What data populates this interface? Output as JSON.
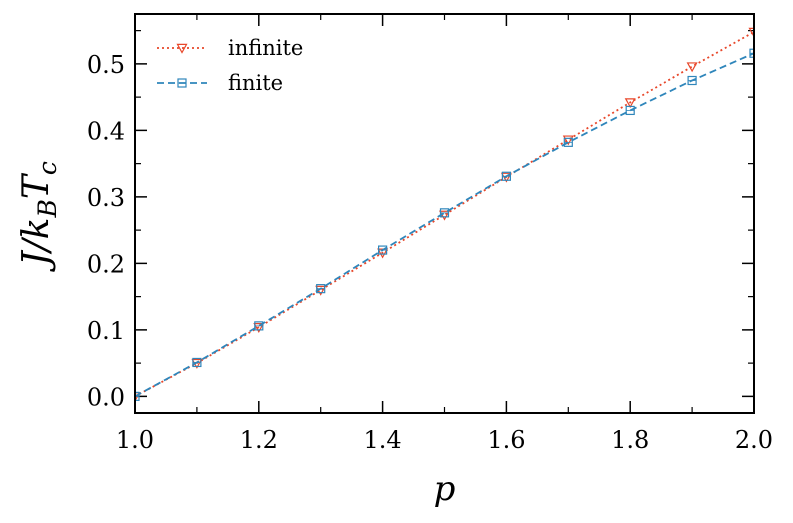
{
  "chart_data": {
    "type": "line",
    "xlabel": "p",
    "ylabel": "J/k_BT_c",
    "ylabel_parts": [
      "J/k",
      "B",
      "T",
      "c"
    ],
    "xlim": [
      1.0,
      2.0
    ],
    "ylim": [
      -0.025,
      0.575
    ],
    "xticks": [
      1.0,
      1.2,
      1.4,
      1.6,
      1.8,
      2.0
    ],
    "xtick_labels": [
      "1.0",
      "1.2",
      "1.4",
      "1.6",
      "1.8",
      "2.0"
    ],
    "yticks": [
      0.0,
      0.1,
      0.2,
      0.3,
      0.4,
      0.5
    ],
    "ytick_labels": [
      "0.0",
      "0.1",
      "0.2",
      "0.3",
      "0.4",
      "0.5"
    ],
    "grid": false,
    "legend_position": "top-left",
    "x": [
      1.0,
      1.1,
      1.2,
      1.3,
      1.4,
      1.5,
      1.6,
      1.7,
      1.8,
      1.9,
      2.0
    ],
    "series": [
      {
        "name": "infinite",
        "color": "#e8472a",
        "linestyle": "dotted",
        "marker": "triangle-down",
        "values": [
          0.0,
          0.05,
          0.104,
          0.16,
          0.216,
          0.273,
          0.33,
          0.386,
          0.442,
          0.496,
          0.548
        ]
      },
      {
        "name": "finite",
        "color": "#2f86bb",
        "linestyle": "dashed",
        "marker": "square",
        "values": [
          0.0,
          0.051,
          0.106,
          0.162,
          0.22,
          0.276,
          0.331,
          0.382,
          0.43,
          0.475,
          0.516
        ]
      }
    ]
  }
}
